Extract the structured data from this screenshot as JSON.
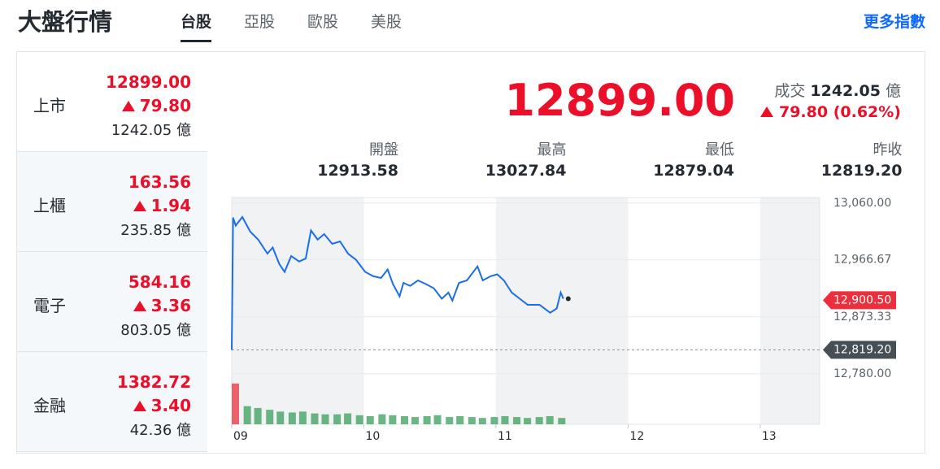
{
  "header": {
    "title": "大盤行情",
    "tabs": [
      "台股",
      "亞股",
      "歐股",
      "美股"
    ],
    "more_link": "更多指數"
  },
  "markets": [
    {
      "name": "上市",
      "price": "12899.00",
      "change": "79.80",
      "volume": "1242.05",
      "unit": "億"
    },
    {
      "name": "上櫃",
      "price": "163.56",
      "change": "1.94",
      "volume": "235.85",
      "unit": "億"
    },
    {
      "name": "電子",
      "price": "584.16",
      "change": "3.36",
      "volume": "803.05",
      "unit": "億"
    },
    {
      "name": "金融",
      "price": "1382.72",
      "change": "3.40",
      "volume": "42.36",
      "unit": "億"
    }
  ],
  "summary": {
    "price": "12899.00",
    "deal_label": "成交",
    "deal_value": "1242.05",
    "deal_unit": "億",
    "change": "79.80",
    "change_pct": "(0.62%)",
    "stats": [
      {
        "label": "開盤",
        "value": "12913.58"
      },
      {
        "label": "最高",
        "value": "13027.84"
      },
      {
        "label": "最低",
        "value": "12879.04"
      },
      {
        "label": "昨收",
        "value": "12819.20"
      }
    ]
  },
  "chart_data": {
    "type": "line",
    "color": "#1a6ee8",
    "x": [
      9,
      9.01,
      9.03,
      9.08,
      9.14,
      9.2,
      9.27,
      9.31,
      9.36,
      9.4,
      9.45,
      9.51,
      9.56,
      9.6,
      9.65,
      9.7,
      9.76,
      9.82,
      9.88,
      9.94,
      10.01,
      10.07,
      10.13,
      10.18,
      10.22,
      10.27,
      10.3,
      10.35,
      10.41,
      10.47,
      10.53,
      10.59,
      10.64,
      10.67,
      10.72,
      10.78,
      10.86,
      10.9,
      10.96,
      11.01,
      11.06,
      11.12,
      11.18,
      11.24,
      11.33,
      11.41,
      11.46,
      11.49,
      11.51
    ],
    "values": [
      12819,
      13036,
      13023,
      13037,
      13013,
      13000,
      12977,
      12987,
      12960,
      12947,
      12973,
      12964,
      12969,
      13015,
      13000,
      13009,
      12993,
      12997,
      12977,
      12967,
      12947,
      12940,
      12937,
      12951,
      12927,
      12907,
      12929,
      12924,
      12933,
      12927,
      12920,
      12903,
      12913,
      12900,
      12929,
      12933,
      12956,
      12933,
      12940,
      12943,
      12933,
      12913,
      12903,
      12893,
      12893,
      12880,
      12887,
      12913,
      12903
    ],
    "xlim": [
      9,
      13.45
    ],
    "xticks": [
      {
        "value": 9,
        "label": "09"
      },
      10,
      11,
      12,
      13
    ],
    "ylim": [
      12697,
      13069
    ],
    "yticks": [
      {
        "value": 13060,
        "label": "13,060.00"
      },
      {
        "value": 12966.67,
        "label": "12,966.67"
      },
      {
        "value": 12873.33,
        "label": "12,873.33"
      },
      {
        "value": 12780,
        "label": "12,780.00"
      }
    ],
    "grid": true,
    "price_tags": [
      {
        "value": 12900.5,
        "label": "12,900.50",
        "color": "#eb2f3c"
      },
      {
        "value": 12819.2,
        "label": "12,819.20",
        "color": "#464e56",
        "dashed": true
      }
    ],
    "volume": {
      "color": "#3a9e5c",
      "axis": "y2",
      "x": [
        9,
        9.09,
        9.17,
        9.26,
        9.34,
        9.43,
        9.51,
        9.6,
        9.68,
        9.77,
        9.85,
        9.94,
        10.02,
        10.11,
        10.19,
        10.28,
        10.36,
        10.45,
        10.53,
        10.62,
        10.7,
        10.79,
        10.87,
        10.96,
        11.04,
        11.13,
        11.21,
        11.3,
        11.38,
        11.47
      ],
      "values": [
        45,
        20,
        18,
        16,
        14,
        13,
        14,
        12,
        11,
        11,
        12,
        10,
        9,
        11,
        10,
        9,
        8,
        9,
        10,
        8,
        9,
        8,
        7,
        8,
        9,
        8,
        7,
        8,
        9,
        7
      ]
    },
    "y2lim": [
      0,
      250
    ]
  }
}
